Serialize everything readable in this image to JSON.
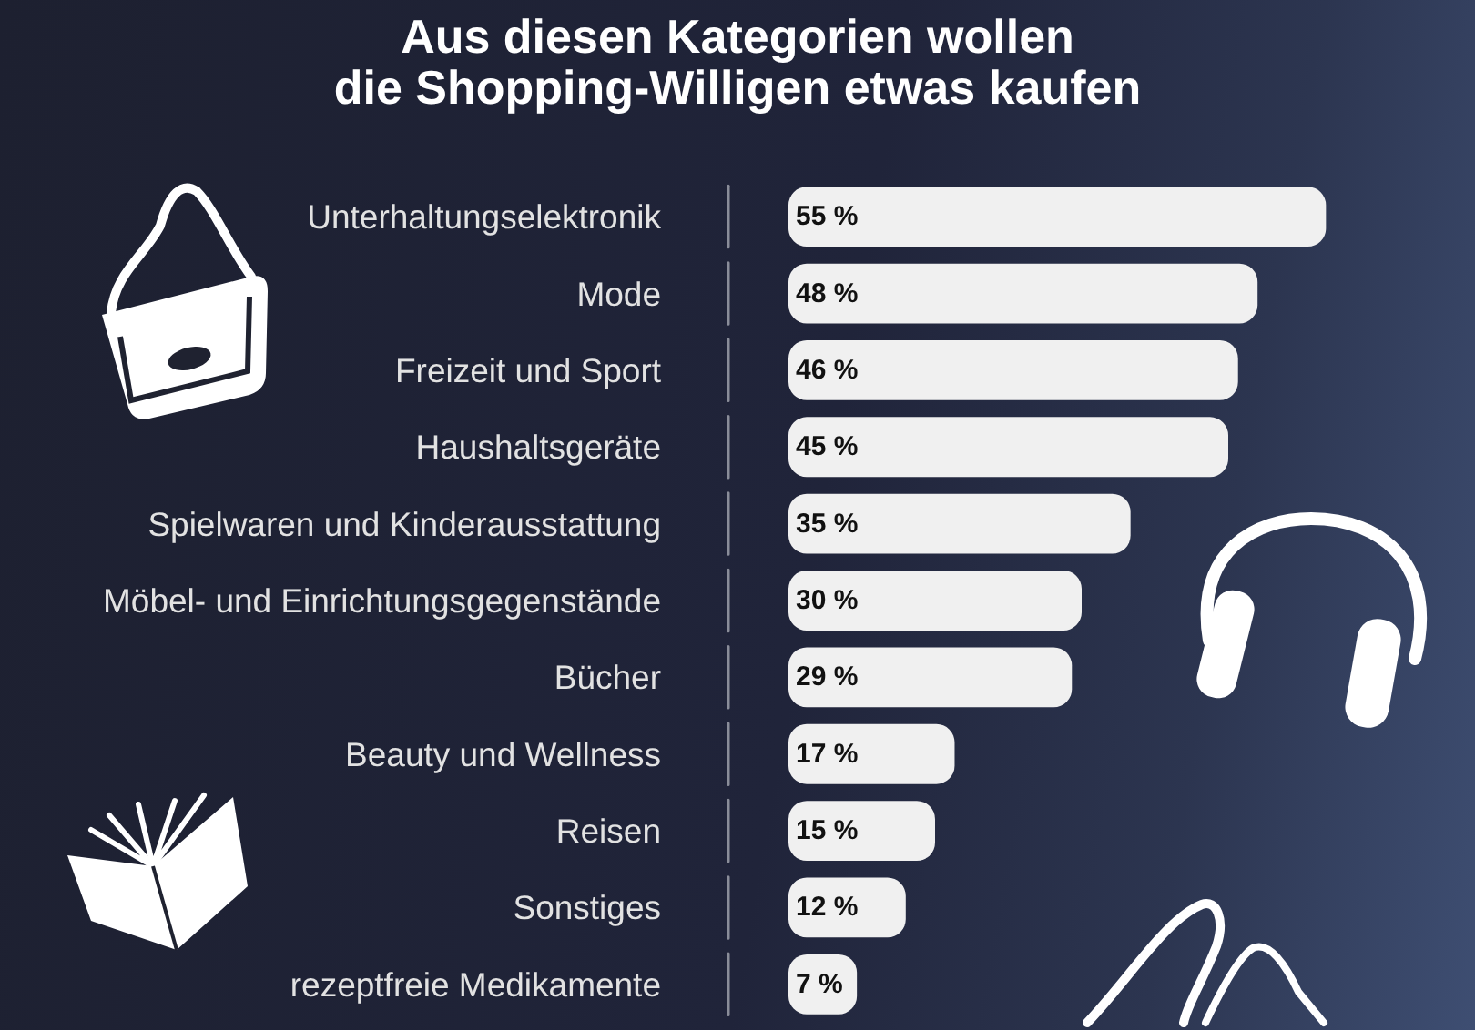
{
  "chart_data": {
    "type": "bar",
    "orientation": "horizontal",
    "title": "Aus diesen Kategorien wollen\ndie Shopping-Willigen etwas kaufen",
    "categories": [
      "Unterhaltungselektronik",
      "Mode",
      "Freizeit und Sport",
      "Haushaltsgeräte",
      "Spielwaren und Kinderausstattung",
      "Möbel- und Einrichtungsgegenstände",
      "Bücher",
      "Beauty und Wellness",
      "Reisen",
      "Sonstiges",
      "rezeptfreie Medikamente"
    ],
    "values": [
      55,
      48,
      46,
      45,
      35,
      30,
      29,
      17,
      15,
      12,
      7
    ],
    "color": "#f0f0f0",
    "value_labels": [
      "55 %",
      "48 %",
      "46 %",
      "45 %",
      "35 %",
      "30 %",
      "29 %",
      "17 %",
      "15 %",
      "12 %",
      "7 %"
    ],
    "tick_labels": "y"
  }
}
